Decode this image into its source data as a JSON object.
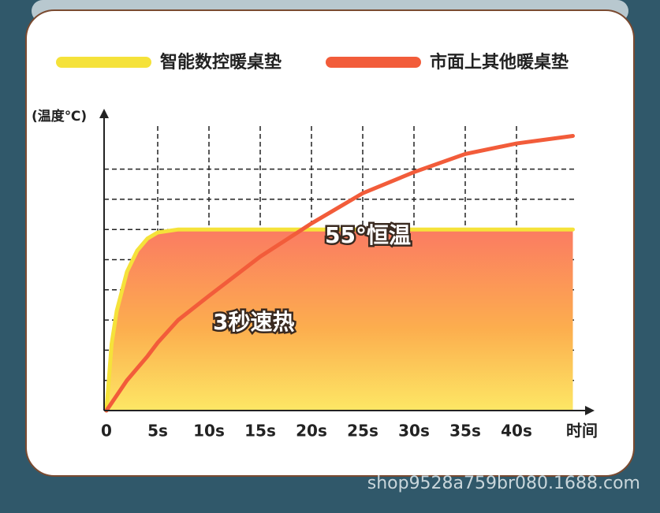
{
  "chart_data": {
    "type": "line",
    "y_label": "(温度℃)",
    "x_label": "时间",
    "x": [
      0,
      0.5,
      1,
      2,
      3,
      4,
      5,
      7,
      10,
      15,
      20,
      25,
      30,
      35,
      40,
      45.5
    ],
    "xlim": [
      0,
      47
    ],
    "xticks": [
      0,
      {
        "value": 5,
        "label": "5s"
      },
      {
        "value": 10,
        "label": "10s"
      },
      {
        "value": 15,
        "label": "15s"
      },
      {
        "value": 20,
        "label": "20s"
      },
      {
        "value": 25,
        "label": "25s"
      },
      {
        "value": 30,
        "label": "30s"
      },
      {
        "value": 35,
        "label": "35s"
      },
      {
        "value": 40,
        "label": "40s"
      }
    ],
    "ylim": [
      0,
      10
    ],
    "ygrid": [
      1,
      2,
      3,
      4,
      5,
      6,
      7,
      8
    ],
    "series": [
      {
        "name": "智能数控暖桌垫",
        "color": "#f5e23a",
        "fill": true,
        "values": [
          0,
          2.2,
          3.3,
          4.6,
          5.3,
          5.7,
          5.9,
          6.0,
          6,
          6,
          6,
          6,
          6,
          6,
          6,
          6
        ]
      },
      {
        "name": "市面上其他暖桌垫",
        "color": "#f25c3a",
        "fill": false,
        "values": [
          0,
          0.25,
          0.5,
          1.0,
          1.4,
          1.8,
          2.25,
          3.0,
          3.8,
          5.1,
          6.2,
          7.2,
          7.9,
          8.5,
          8.85,
          9.1
        ]
      }
    ],
    "annotations": [
      "55°恒温",
      "3秒速热"
    ],
    "watermark": "shop9528a759br080.1688.com"
  }
}
